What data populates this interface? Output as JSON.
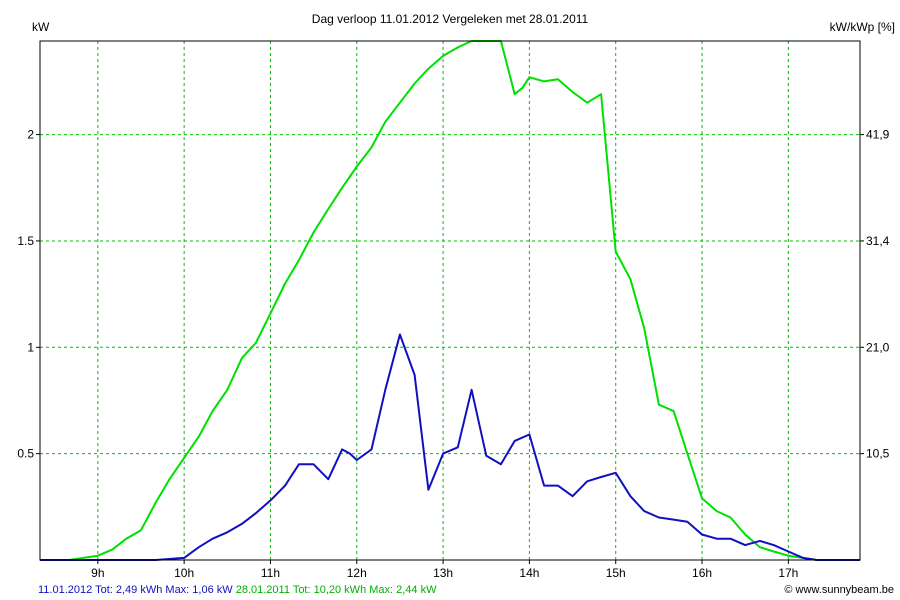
{
  "chart_data": {
    "type": "line",
    "title": "Dag  verloop 11.01.2012   Vergeleken met 28.01.2011",
    "ylabel_left": "kW",
    "ylabel_right": "kW/kWp [%]",
    "x_ticks": [
      "9h",
      "10h",
      "11h",
      "12h",
      "13h",
      "14h",
      "15h",
      "16h",
      "17h"
    ],
    "x_tick_hours": [
      9,
      10,
      11,
      12,
      13,
      14,
      15,
      16,
      17
    ],
    "xlim": [
      8.33,
      17.83
    ],
    "ylim": [
      0,
      2.44
    ],
    "y_ticks": [
      0.5,
      1,
      1.5,
      2
    ],
    "y_tick_labels": [
      "0.5",
      "1",
      "1.5",
      "2"
    ],
    "y_right_ticks": [
      0.5,
      1,
      1.5,
      2
    ],
    "y_right_tick_labels": [
      "10,5",
      "21,0",
      "31,4",
      "41,9"
    ],
    "grid": true,
    "series": [
      {
        "name": "28.01.2011",
        "color": "#00e000",
        "x": [
          8.33,
          8.67,
          8.83,
          9.0,
          9.17,
          9.33,
          9.5,
          9.67,
          9.83,
          10.0,
          10.17,
          10.33,
          10.5,
          10.67,
          10.83,
          11.0,
          11.17,
          11.33,
          11.5,
          11.67,
          11.83,
          12.0,
          12.17,
          12.33,
          12.5,
          12.67,
          12.83,
          13.0,
          13.17,
          13.33,
          13.5,
          13.67,
          13.83,
          13.92,
          14.0,
          14.17,
          14.33,
          14.5,
          14.67,
          14.83,
          15.0,
          15.17,
          15.33,
          15.5,
          15.67,
          15.83,
          16.0,
          16.17,
          16.33,
          16.5,
          16.67,
          16.83,
          17.0,
          17.17,
          17.33,
          17.5,
          17.83
        ],
        "y": [
          0,
          0,
          0.01,
          0.02,
          0.05,
          0.1,
          0.14,
          0.27,
          0.38,
          0.48,
          0.58,
          0.7,
          0.8,
          0.95,
          1.02,
          1.16,
          1.3,
          1.41,
          1.54,
          1.65,
          1.75,
          1.85,
          1.94,
          2.06,
          2.15,
          2.24,
          2.31,
          2.37,
          2.41,
          2.44,
          2.44,
          2.44,
          2.19,
          2.22,
          2.27,
          2.25,
          2.26,
          2.2,
          2.15,
          2.19,
          1.45,
          1.32,
          1.09,
          0.73,
          0.7,
          0.5,
          0.29,
          0.23,
          0.2,
          0.12,
          0.06,
          0.04,
          0.02,
          0.01,
          0,
          0,
          0
        ]
      },
      {
        "name": "11.01.2012",
        "color": "#1010c0",
        "x": [
          8.33,
          8.67,
          9.0,
          9.33,
          9.67,
          10.0,
          10.17,
          10.33,
          10.5,
          10.67,
          10.83,
          11.0,
          11.17,
          11.33,
          11.5,
          11.67,
          11.83,
          11.92,
          12.0,
          12.17,
          12.33,
          12.5,
          12.67,
          12.83,
          13.0,
          13.17,
          13.33,
          13.5,
          13.67,
          13.83,
          14.0,
          14.17,
          14.33,
          14.5,
          14.67,
          14.83,
          15.0,
          15.17,
          15.33,
          15.5,
          15.67,
          15.83,
          16.0,
          16.17,
          16.33,
          16.5,
          16.67,
          16.83,
          17.0,
          17.17,
          17.33,
          17.5,
          17.83
        ],
        "y": [
          0,
          0,
          0,
          0,
          0,
          0.01,
          0.06,
          0.1,
          0.13,
          0.17,
          0.22,
          0.28,
          0.35,
          0.45,
          0.45,
          0.38,
          0.52,
          0.5,
          0.47,
          0.52,
          0.8,
          1.06,
          0.87,
          0.33,
          0.5,
          0.53,
          0.8,
          0.49,
          0.45,
          0.56,
          0.59,
          0.35,
          0.35,
          0.3,
          0.37,
          0.39,
          0.41,
          0.3,
          0.23,
          0.2,
          0.19,
          0.18,
          0.12,
          0.1,
          0.1,
          0.07,
          0.09,
          0.07,
          0.04,
          0.01,
          0,
          0,
          0
        ]
      }
    ]
  },
  "footer": {
    "left_blue": "11.01.2012 Tot: 2,49 kWh Max: 1,06 kW",
    "left_green": "28.01.2011 Tot: 10,20 kWh Max: 2,44 kW",
    "right": "© www.sunnybeam.be"
  },
  "colors": {
    "grid": "#00c000",
    "frame": "#000000"
  }
}
